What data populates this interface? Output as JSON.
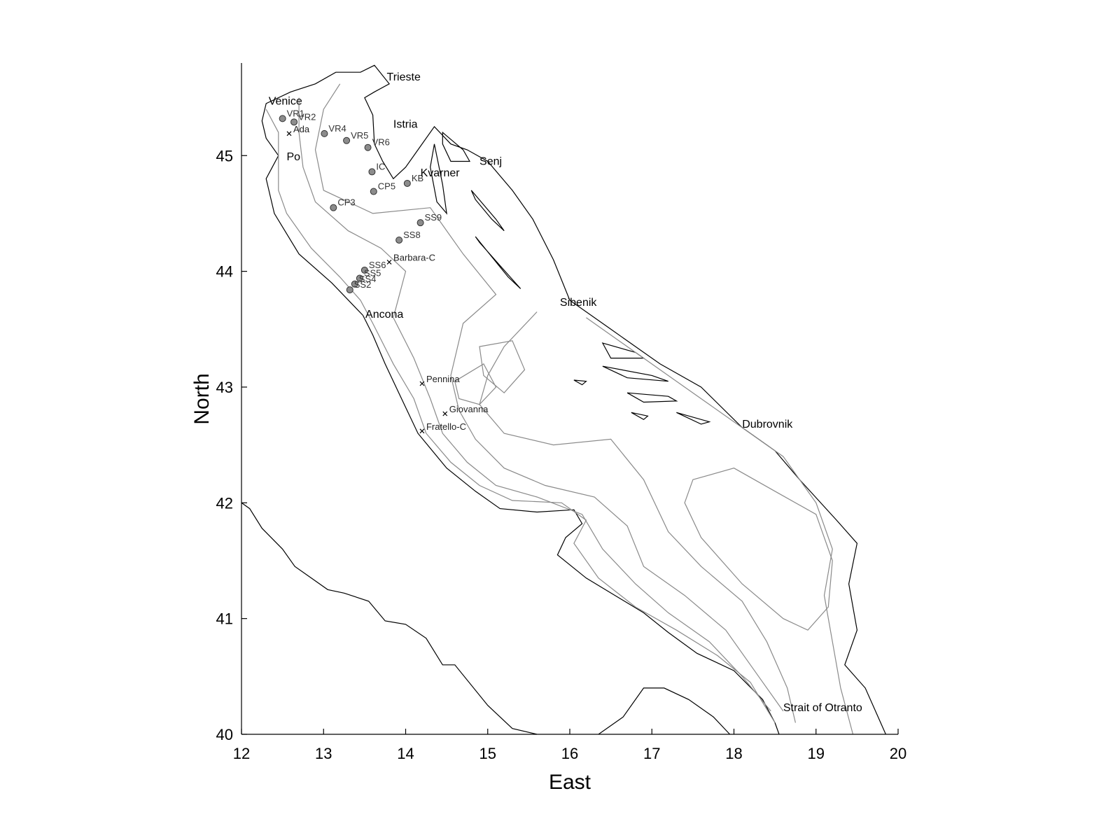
{
  "axes": {
    "xlabel": "East",
    "ylabel": "North",
    "xlim": [
      12,
      20
    ],
    "ylim": [
      40,
      45.8
    ],
    "xticks": [
      "12",
      "13",
      "14",
      "15",
      "16",
      "17",
      "18",
      "19",
      "20"
    ],
    "yticks": [
      "40",
      "41",
      "42",
      "43",
      "44",
      "45"
    ]
  },
  "places": [
    {
      "id": "trieste",
      "name": "Trieste",
      "lon": 13.77,
      "lat": 45.65
    },
    {
      "id": "venice",
      "name": "Venice",
      "lon": 12.33,
      "lat": 45.44
    },
    {
      "id": "istria",
      "name": "Istria",
      "lon": 13.85,
      "lat": 45.24
    },
    {
      "id": "po",
      "name": "Po",
      "lon": 12.55,
      "lat": 44.96
    },
    {
      "id": "kvarner",
      "name": "Kvarner",
      "lon": 14.18,
      "lat": 44.82
    },
    {
      "id": "senj",
      "name": "Senj",
      "lon": 14.9,
      "lat": 44.92
    },
    {
      "id": "sibenik",
      "name": "Sibenik",
      "lon": 15.88,
      "lat": 43.7
    },
    {
      "id": "ancona",
      "name": "Ancona",
      "lon": 13.51,
      "lat": 43.6
    },
    {
      "id": "dubrovnik",
      "name": "Dubrovnik",
      "lon": 18.1,
      "lat": 42.65
    },
    {
      "id": "otranto",
      "name": "Strait of Otranto",
      "lon": 18.6,
      "lat": 40.2
    }
  ],
  "stations": [
    {
      "name": "VR1",
      "lon": 12.5,
      "lat": 45.32
    },
    {
      "name": "VR2",
      "lon": 12.64,
      "lat": 45.29
    },
    {
      "name": "VR4",
      "lon": 13.01,
      "lat": 45.19
    },
    {
      "name": "VR5",
      "lon": 13.28,
      "lat": 45.13
    },
    {
      "name": "VR6",
      "lon": 13.54,
      "lat": 45.07
    },
    {
      "name": "IC",
      "lon": 13.59,
      "lat": 44.86
    },
    {
      "name": "KB",
      "lon": 14.02,
      "lat": 44.76
    },
    {
      "name": "CP5",
      "lon": 13.61,
      "lat": 44.69
    },
    {
      "name": "CP3",
      "lon": 13.12,
      "lat": 44.55
    },
    {
      "name": "SS9",
      "lon": 14.18,
      "lat": 44.42
    },
    {
      "name": "SS8",
      "lon": 13.92,
      "lat": 44.27
    },
    {
      "name": "SS6",
      "lon": 13.5,
      "lat": 44.01
    },
    {
      "name": "SS5",
      "lon": 13.44,
      "lat": 43.94
    },
    {
      "name": "SS4",
      "lon": 13.38,
      "lat": 43.89
    },
    {
      "name": "SS2",
      "lon": 13.32,
      "lat": 43.84
    }
  ],
  "platforms": [
    {
      "name": "Ada",
      "lon": 12.58,
      "lat": 45.19
    },
    {
      "name": "Barbara-C",
      "lon": 13.8,
      "lat": 44.08
    },
    {
      "name": "Pennina",
      "lon": 14.2,
      "lat": 43.03
    },
    {
      "name": "Giovanna",
      "lon": 14.48,
      "lat": 42.77
    },
    {
      "name": "Fratello-C",
      "lon": 14.2,
      "lat": 42.62
    }
  ],
  "coastlines": [
    {
      "id": "italy-coast",
      "points": [
        [
          12.0,
          42.0
        ],
        [
          12.1,
          41.95
        ],
        [
          12.25,
          41.78
        ],
        [
          12.5,
          41.6
        ],
        [
          12.65,
          41.45
        ],
        [
          12.85,
          41.35
        ],
        [
          13.05,
          41.25
        ],
        [
          13.25,
          41.22
        ],
        [
          13.55,
          41.15
        ],
        [
          13.75,
          40.98
        ],
        [
          14.0,
          40.95
        ],
        [
          14.25,
          40.83
        ],
        [
          14.45,
          40.6
        ],
        [
          14.6,
          40.6
        ],
        [
          15.0,
          40.25
        ],
        [
          15.3,
          40.05
        ],
        [
          15.6,
          40.0
        ]
      ]
    },
    {
      "id": "gargano-coast",
      "points": [
        [
          13.48,
          43.62
        ],
        [
          13.6,
          43.45
        ],
        [
          13.75,
          43.2
        ],
        [
          13.95,
          42.9
        ],
        [
          14.15,
          42.6
        ],
        [
          14.5,
          42.3
        ],
        [
          14.85,
          42.1
        ],
        [
          15.15,
          41.95
        ],
        [
          15.6,
          41.92
        ],
        [
          16.05,
          41.94
        ],
        [
          16.15,
          41.82
        ],
        [
          15.95,
          41.7
        ],
        [
          15.85,
          41.55
        ],
        [
          16.2,
          41.35
        ],
        [
          16.55,
          41.2
        ],
        [
          16.9,
          41.05
        ],
        [
          17.2,
          40.88
        ],
        [
          17.55,
          40.7
        ],
        [
          18.0,
          40.55
        ],
        [
          18.35,
          40.3
        ],
        [
          18.5,
          40.1
        ],
        [
          18.55,
          40.0
        ]
      ]
    },
    {
      "id": "taranto-coast",
      "points": [
        [
          16.35,
          40.0
        ],
        [
          16.65,
          40.15
        ],
        [
          16.9,
          40.4
        ],
        [
          17.15,
          40.4
        ],
        [
          17.45,
          40.3
        ],
        [
          17.75,
          40.15
        ],
        [
          17.95,
          40.0
        ]
      ]
    },
    {
      "id": "northern-italy-coast",
      "points": [
        [
          13.48,
          43.62
        ],
        [
          13.1,
          43.9
        ],
        [
          12.7,
          44.15
        ],
        [
          12.4,
          44.5
        ],
        [
          12.3,
          44.8
        ],
        [
          12.45,
          45.0
        ],
        [
          12.3,
          45.15
        ],
        [
          12.25,
          45.3
        ],
        [
          12.3,
          45.45
        ],
        [
          12.6,
          45.55
        ],
        [
          12.9,
          45.62
        ],
        [
          13.15,
          45.72
        ],
        [
          13.45,
          45.72
        ],
        [
          13.62,
          45.78
        ],
        [
          13.8,
          45.62
        ],
        [
          13.62,
          45.55
        ],
        [
          13.5,
          45.5
        ],
        [
          13.6,
          45.35
        ],
        [
          13.62,
          45.1
        ],
        [
          13.72,
          44.95
        ],
        [
          13.85,
          44.8
        ],
        [
          14.0,
          44.9
        ],
        [
          14.15,
          45.05
        ],
        [
          14.35,
          45.25
        ],
        [
          14.55,
          45.1
        ],
        [
          14.75,
          45.05
        ],
        [
          15.0,
          44.95
        ],
        [
          15.3,
          44.7
        ],
        [
          15.55,
          44.45
        ],
        [
          15.8,
          44.1
        ],
        [
          16.0,
          43.75
        ],
        [
          16.5,
          43.5
        ],
        [
          17.1,
          43.2
        ],
        [
          17.6,
          43.0
        ],
        [
          18.1,
          42.65
        ],
        [
          18.5,
          42.45
        ],
        [
          18.8,
          42.2
        ],
        [
          19.25,
          41.85
        ],
        [
          19.5,
          41.65
        ],
        [
          19.4,
          41.3
        ],
        [
          19.5,
          40.9
        ],
        [
          19.35,
          40.6
        ],
        [
          19.6,
          40.4
        ],
        [
          19.85,
          40.0
        ]
      ]
    }
  ],
  "islands": [
    {
      "id": "krk",
      "points": [
        [
          14.45,
          45.2
        ],
        [
          14.7,
          45.05
        ],
        [
          14.78,
          44.95
        ],
        [
          14.55,
          44.95
        ],
        [
          14.45,
          45.1
        ],
        [
          14.45,
          45.2
        ]
      ]
    },
    {
      "id": "cres",
      "points": [
        [
          14.35,
          45.1
        ],
        [
          14.45,
          44.75
        ],
        [
          14.5,
          44.5
        ],
        [
          14.38,
          44.6
        ],
        [
          14.3,
          44.9
        ],
        [
          14.35,
          45.1
        ]
      ]
    },
    {
      "id": "pag",
      "points": [
        [
          14.8,
          44.7
        ],
        [
          15.1,
          44.45
        ],
        [
          15.2,
          44.35
        ],
        [
          15.05,
          44.45
        ],
        [
          14.85,
          44.62
        ],
        [
          14.8,
          44.7
        ]
      ]
    },
    {
      "id": "dugi",
      "points": [
        [
          14.85,
          44.3
        ],
        [
          15.25,
          43.95
        ],
        [
          15.4,
          43.85
        ],
        [
          15.15,
          44.05
        ],
        [
          14.9,
          44.25
        ],
        [
          14.85,
          44.3
        ]
      ]
    },
    {
      "id": "brac",
      "points": [
        [
          16.4,
          43.38
        ],
        [
          16.8,
          43.3
        ],
        [
          16.9,
          43.25
        ],
        [
          16.5,
          43.25
        ],
        [
          16.4,
          43.38
        ]
      ]
    },
    {
      "id": "hvar",
      "points": [
        [
          16.4,
          43.18
        ],
        [
          17.0,
          43.1
        ],
        [
          17.2,
          43.05
        ],
        [
          16.7,
          43.08
        ],
        [
          16.4,
          43.18
        ]
      ]
    },
    {
      "id": "korcula",
      "points": [
        [
          16.7,
          42.95
        ],
        [
          17.2,
          42.92
        ],
        [
          17.3,
          42.88
        ],
        [
          16.9,
          42.87
        ],
        [
          16.7,
          42.95
        ]
      ]
    },
    {
      "id": "lastovo",
      "points": [
        [
          16.75,
          42.78
        ],
        [
          16.95,
          42.75
        ],
        [
          16.9,
          42.72
        ],
        [
          16.75,
          42.78
        ]
      ]
    },
    {
      "id": "vis",
      "points": [
        [
          16.05,
          43.06
        ],
        [
          16.2,
          43.05
        ],
        [
          16.15,
          43.02
        ],
        [
          16.05,
          43.06
        ]
      ]
    },
    {
      "id": "mljet",
      "points": [
        [
          17.3,
          42.78
        ],
        [
          17.7,
          42.7
        ],
        [
          17.6,
          42.68
        ],
        [
          17.3,
          42.78
        ]
      ]
    }
  ],
  "isobaths": [
    {
      "id": "isobath-20m",
      "points": [
        [
          12.3,
          45.4
        ],
        [
          12.45,
          45.2
        ],
        [
          12.45,
          45.0
        ],
        [
          12.45,
          44.7
        ],
        [
          12.55,
          44.5
        ],
        [
          12.85,
          44.2
        ],
        [
          13.2,
          43.95
        ],
        [
          13.45,
          43.75
        ],
        [
          13.6,
          43.55
        ],
        [
          13.85,
          43.2
        ],
        [
          14.1,
          42.9
        ],
        [
          14.25,
          42.6
        ],
        [
          14.55,
          42.35
        ],
        [
          14.9,
          42.15
        ],
        [
          15.3,
          42.02
        ],
        [
          15.9,
          42.0
        ],
        [
          16.2,
          41.85
        ],
        [
          16.05,
          41.65
        ],
        [
          16.35,
          41.35
        ],
        [
          16.8,
          41.1
        ],
        [
          17.3,
          40.9
        ],
        [
          17.8,
          40.68
        ],
        [
          18.2,
          40.45
        ],
        [
          18.5,
          40.1
        ]
      ]
    },
    {
      "id": "isobath-50m",
      "points": [
        [
          12.7,
          45.5
        ],
        [
          12.7,
          45.2
        ],
        [
          12.75,
          44.9
        ],
        [
          12.9,
          44.6
        ],
        [
          13.3,
          44.35
        ],
        [
          13.7,
          44.2
        ],
        [
          14.0,
          44.0
        ],
        [
          13.85,
          43.6
        ],
        [
          14.1,
          43.25
        ],
        [
          14.3,
          42.9
        ],
        [
          14.45,
          42.6
        ],
        [
          14.75,
          42.35
        ],
        [
          15.1,
          42.15
        ],
        [
          15.6,
          42.05
        ],
        [
          16.15,
          41.9
        ],
        [
          16.4,
          41.6
        ],
        [
          16.8,
          41.3
        ],
        [
          17.2,
          41.05
        ],
        [
          17.7,
          40.8
        ],
        [
          18.1,
          40.5
        ],
        [
          18.45,
          40.2
        ]
      ]
    },
    {
      "id": "isobath-100m",
      "points": [
        [
          13.2,
          45.62
        ],
        [
          13.0,
          45.4
        ],
        [
          12.9,
          45.05
        ],
        [
          13.0,
          44.7
        ],
        [
          13.6,
          44.5
        ],
        [
          14.3,
          44.55
        ],
        [
          14.7,
          44.15
        ],
        [
          15.1,
          43.8
        ],
        [
          14.7,
          43.55
        ],
        [
          14.55,
          43.1
        ],
        [
          14.65,
          42.8
        ],
        [
          14.85,
          42.55
        ],
        [
          15.2,
          42.3
        ],
        [
          15.7,
          42.15
        ],
        [
          16.3,
          42.05
        ],
        [
          16.7,
          41.8
        ],
        [
          16.9,
          41.45
        ],
        [
          17.4,
          41.2
        ],
        [
          17.9,
          40.9
        ],
        [
          18.3,
          40.5
        ],
        [
          18.6,
          40.2
        ]
      ]
    },
    {
      "id": "isobath-200m",
      "points": [
        [
          15.6,
          43.65
        ],
        [
          15.2,
          43.35
        ],
        [
          15.0,
          43.1
        ],
        [
          14.9,
          42.85
        ],
        [
          15.2,
          42.6
        ],
        [
          15.8,
          42.5
        ],
        [
          16.5,
          42.55
        ],
        [
          16.9,
          42.2
        ],
        [
          17.2,
          41.75
        ],
        [
          17.6,
          41.45
        ],
        [
          18.1,
          41.15
        ],
        [
          18.4,
          40.8
        ],
        [
          18.65,
          40.4
        ],
        [
          18.75,
          40.1
        ]
      ]
    },
    {
      "id": "isobath-1000m",
      "points": [
        [
          17.5,
          42.2
        ],
        [
          18.0,
          42.3
        ],
        [
          18.5,
          42.1
        ],
        [
          19.0,
          41.9
        ],
        [
          19.2,
          41.5
        ],
        [
          19.15,
          41.1
        ],
        [
          18.9,
          40.9
        ],
        [
          18.6,
          41.0
        ],
        [
          18.1,
          41.3
        ],
        [
          17.6,
          41.7
        ],
        [
          17.4,
          42.0
        ],
        [
          17.5,
          42.2
        ]
      ]
    },
    {
      "id": "isobath-east-shelf",
      "points": [
        [
          16.2,
          43.6
        ],
        [
          16.8,
          43.3
        ],
        [
          17.4,
          43.0
        ],
        [
          18.0,
          42.7
        ],
        [
          18.6,
          42.4
        ],
        [
          19.0,
          42.0
        ],
        [
          19.2,
          41.6
        ],
        [
          19.1,
          41.2
        ],
        [
          19.2,
          40.8
        ],
        [
          19.3,
          40.4
        ],
        [
          19.45,
          40.0
        ]
      ]
    },
    {
      "id": "jabuka-pit",
      "points": [
        [
          14.9,
          43.35
        ],
        [
          15.3,
          43.4
        ],
        [
          15.45,
          43.15
        ],
        [
          15.2,
          42.95
        ],
        [
          14.95,
          43.1
        ],
        [
          14.9,
          43.35
        ]
      ]
    },
    {
      "id": "pomo-basin",
      "points": [
        [
          14.6,
          43.05
        ],
        [
          14.95,
          43.2
        ],
        [
          15.1,
          43.0
        ],
        [
          14.9,
          42.85
        ],
        [
          14.65,
          42.9
        ],
        [
          14.6,
          43.05
        ]
      ]
    }
  ]
}
